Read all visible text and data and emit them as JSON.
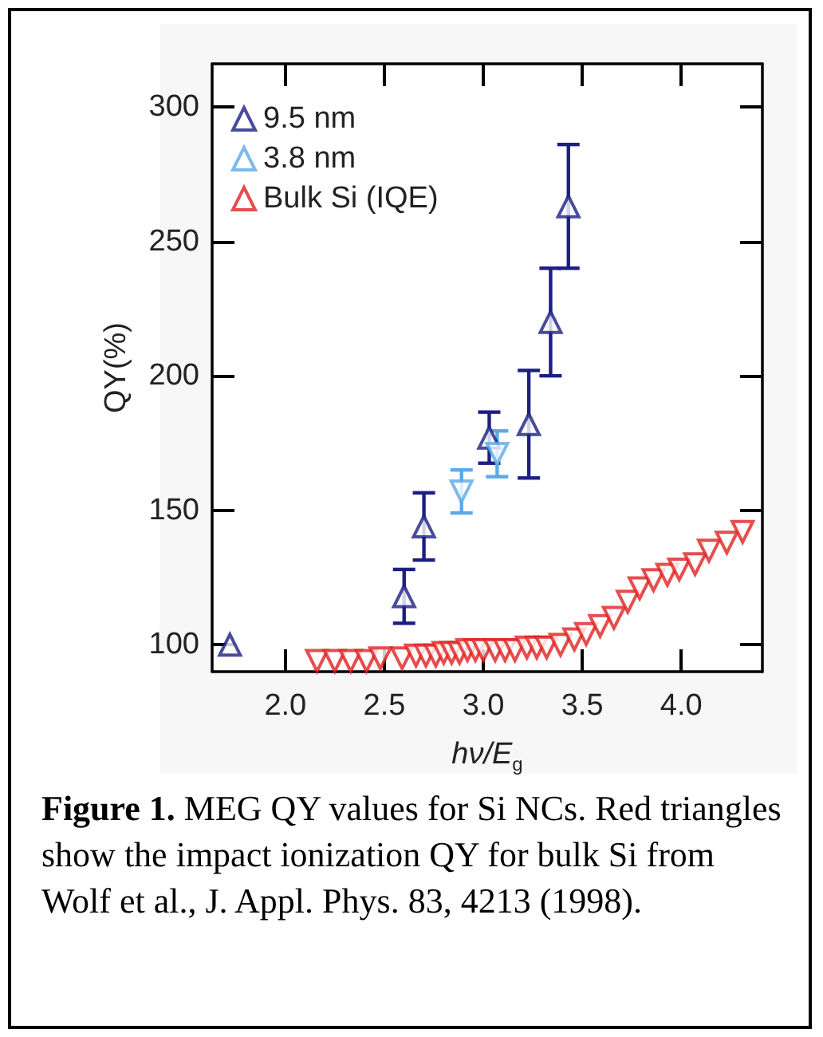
{
  "chart_data": {
    "type": "scatter",
    "xlabel": "hν/E$_{g}$",
    "ylabel": "QY(%)",
    "xlim": [
      1.63,
      4.41
    ],
    "xticks": [
      {
        "value": 2,
        "label": "2.0"
      },
      {
        "value": 2.5,
        "label": "2.5"
      },
      {
        "value": 3,
        "label": "3.0"
      },
      {
        "value": 3.5,
        "label": "3.5"
      },
      {
        "value": 4,
        "label": "4.0"
      }
    ],
    "ylim": [
      90,
      316
    ],
    "yticks": [
      100,
      150,
      200,
      250,
      300
    ],
    "grid": false,
    "legend": "top left",
    "marker": "triangle",
    "series": [
      {
        "name": "9.5 nm",
        "color": "#1c1f80",
        "x": [
          1.72,
          2.6,
          2.7,
          3.03,
          3.23,
          3.34,
          3.43
        ],
        "values": [
          100,
          118,
          144,
          177,
          182,
          220,
          263
        ],
        "errors": [
          null,
          10,
          12.5,
          9.5,
          20,
          20,
          23
        ]
      },
      {
        "name": "3.8 nm",
        "color": "#5aaae6",
        "x": [
          2.89,
          3.07
        ],
        "values": [
          157,
          171
        ],
        "errors": [
          8,
          8.5
        ]
      },
      {
        "name": "Bulk Si (IQE)",
        "color": "#e02020",
        "x": [
          2.16,
          2.25,
          2.33,
          2.41,
          2.48,
          2.59,
          2.66,
          2.71,
          2.76,
          2.8,
          2.84,
          2.88,
          2.92,
          2.96,
          3.0,
          3.06,
          3.11,
          3.16,
          3.22,
          3.27,
          3.32,
          3.39,
          3.46,
          3.52,
          3.59,
          3.66,
          3.73,
          3.79,
          3.86,
          3.93,
          3.99,
          4.07,
          4.14,
          4.23,
          4.31
        ],
        "values": [
          94,
          94,
          94,
          94,
          95,
          95,
          96,
          96,
          96,
          97,
          97,
          97,
          98,
          98,
          98,
          98,
          98,
          98,
          99,
          99,
          99,
          100,
          102,
          104,
          107,
          110,
          116,
          121,
          124,
          126,
          128,
          130,
          135,
          138,
          142
        ]
      }
    ],
    "annotations": [
      "Figure 1.",
      "MEG QY values for Si NCs. Red triangles show the impact ionization QY for bulk Si from Wolf et al., J. Appl. Phys. 83, 4213 (1998)."
    ]
  }
}
